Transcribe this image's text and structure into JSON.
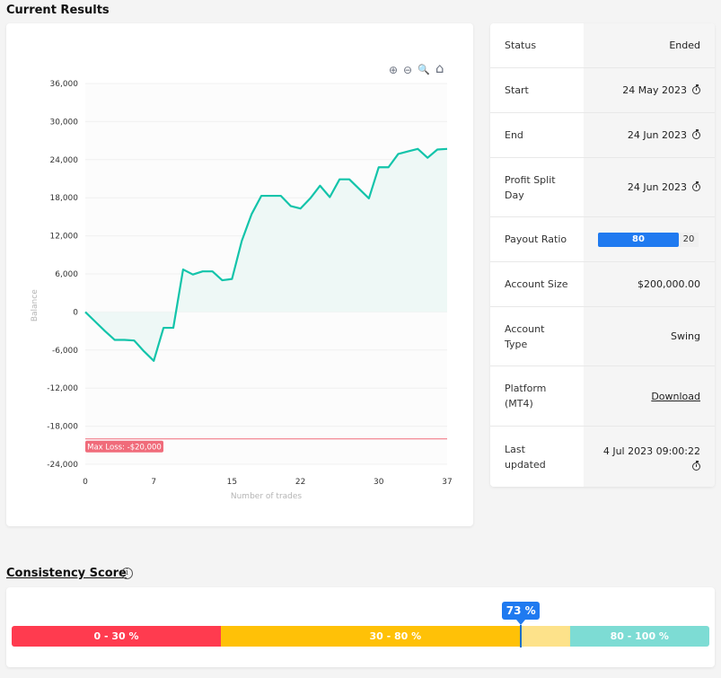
{
  "results_title": "Current Results",
  "toolbar": {
    "zoom_in": "⊕",
    "zoom_out": "⊖",
    "zoom_select": "🔍",
    "reset": "⌂"
  },
  "chart_data": {
    "type": "area",
    "xlabel": "Number of trades",
    "ylabel": "Balance",
    "xlim": [
      0,
      37
    ],
    "ylim": [
      -24000,
      36000
    ],
    "x_ticks": [
      0,
      7,
      15,
      22,
      30,
      37
    ],
    "y_ticks": [
      36000,
      30000,
      24000,
      18000,
      12000,
      6000,
      0,
      -6000,
      -12000,
      -18000,
      -24000
    ],
    "y_tick_labels": [
      "36,000",
      "30,000",
      "24,000",
      "18,000",
      "12,000",
      "6,000",
      "0",
      "-6,000",
      "-12,000",
      "-18,000",
      "-24,000"
    ],
    "x": [
      0,
      1,
      2,
      3,
      4,
      5,
      6,
      7,
      8,
      9,
      10,
      11,
      12,
      13,
      14,
      15,
      16,
      17,
      18,
      19,
      20,
      21,
      22,
      23,
      24,
      25,
      26,
      27,
      28,
      29,
      30,
      31,
      32,
      33,
      34,
      35,
      36,
      37
    ],
    "values": [
      0,
      -1500,
      -3000,
      -4400,
      -4400,
      -4500,
      -6200,
      -7700,
      -2500,
      -2500,
      6700,
      5900,
      6400,
      6400,
      5000,
      5200,
      11200,
      15400,
      18300,
      18300,
      18300,
      16700,
      16300,
      17900,
      19900,
      18100,
      20900,
      20900,
      19400,
      17900,
      22800,
      22800,
      24900,
      25300,
      25700,
      24300,
      25600,
      25700
    ],
    "line_color": "#13c4aa",
    "fill_color": "#eef8f6",
    "max_loss": {
      "value": -20000,
      "label": "Max Loss: -$20,000",
      "color": "#f06b7a"
    },
    "grid": true
  },
  "info": [
    {
      "label": "Status",
      "value": "Ended"
    },
    {
      "label": "Start",
      "value": "24 May 2023",
      "icon": "stopwatch-icon"
    },
    {
      "label": "End",
      "value": "24 Jun 2023",
      "icon": "stopwatch-icon"
    },
    {
      "label": "Profit Split Day",
      "value": "24 Jun 2023",
      "icon": "stopwatch-icon"
    },
    {
      "label": "Payout Ratio",
      "value": "80",
      "rest": "20"
    },
    {
      "label": "Account Size",
      "value": "$200,000.00"
    },
    {
      "label": "Account Type",
      "value": "Swing"
    },
    {
      "label": "Platform (MT4)",
      "value": "Download"
    },
    {
      "label": "Last updated",
      "value": "4 Jul 2023 09:00:22",
      "icon": "stopwatch-icon"
    }
  ],
  "consistency": {
    "title": "Consistency Score",
    "info_glyph": "i",
    "score": 73,
    "score_label": "73 %",
    "segments": [
      {
        "label": "0 - 30 %",
        "from": 0,
        "to": 30,
        "color": "#ff3b4f"
      },
      {
        "label": "30 - 80 %",
        "from": 30,
        "to": 80,
        "color": "#ffc107",
        "reached_to": 73,
        "unreached_color": "#fde28a"
      },
      {
        "label": "80 - 100 %",
        "from": 80,
        "to": 100,
        "color": "#7ddcd4"
      }
    ]
  }
}
